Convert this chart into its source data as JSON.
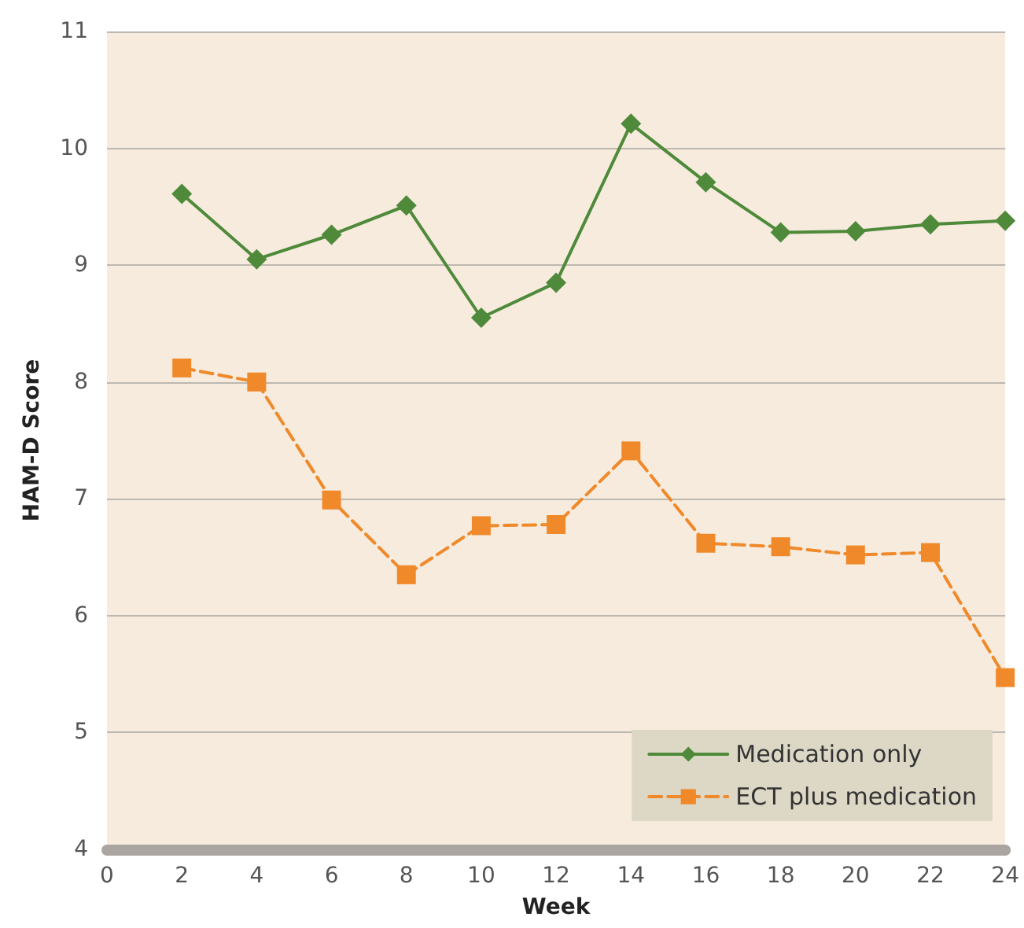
{
  "chart_data": {
    "type": "line",
    "xlabel": "Week",
    "ylabel": "HAM-D Score",
    "x": [
      2,
      4,
      6,
      8,
      10,
      12,
      14,
      16,
      18,
      20,
      22,
      24
    ],
    "xlim": [
      0,
      24
    ],
    "xticks": [
      0,
      2,
      4,
      6,
      8,
      10,
      12,
      14,
      16,
      18,
      20,
      22,
      24
    ],
    "ylim": [
      4,
      11
    ],
    "yticks": [
      4,
      5,
      6,
      7,
      8,
      9,
      10,
      11
    ],
    "grid": "y",
    "legend": "bottom right",
    "series": [
      {
        "name": "Medication only",
        "color": "#4e8a3a",
        "marker": "diamond",
        "line_style": "solid",
        "values": [
          9.61,
          9.05,
          9.26,
          9.51,
          8.55,
          8.85,
          10.21,
          9.71,
          9.28,
          9.29,
          9.35,
          9.38
        ]
      },
      {
        "name": "ECT plus medication",
        "color": "#f0892a",
        "marker": "square",
        "line_style": "dashed",
        "values": [
          8.12,
          8.0,
          6.99,
          6.35,
          6.77,
          6.78,
          7.41,
          6.62,
          6.59,
          6.52,
          6.54,
          5.47
        ]
      }
    ]
  }
}
